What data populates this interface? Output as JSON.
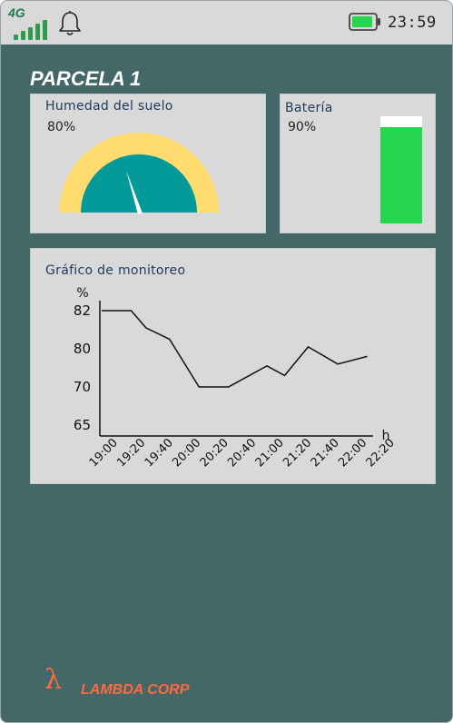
{
  "status_bar": {
    "network": "4G",
    "time": "23:59",
    "signal_bars": 5,
    "colors": {
      "signal": "#2e9c4a",
      "battery_fill": "#27d64f"
    }
  },
  "page": {
    "title": "PARCELA 1"
  },
  "humidity_card": {
    "title": "Humedad del suelo",
    "value": "80%",
    "level": 0.8,
    "colors": {
      "outer": "#ffdb70",
      "inner": "#049a99",
      "needle": "#ffffff"
    }
  },
  "battery_card": {
    "title": "Batería",
    "value": "90%",
    "level": 0.9,
    "colors": {
      "fill": "#27d64f",
      "empty": "#ffffff"
    }
  },
  "chart_card": {
    "title": "Gráfico de monitoreo"
  },
  "chart_data": {
    "type": "line",
    "title": "Gráfico de monitoreo",
    "xlabel": "h",
    "ylabel": "%",
    "y_tick_labels": [
      "82",
      "80",
      "70",
      "65"
    ],
    "x": [
      "19:00",
      "19:20",
      "19:40",
      "20:00",
      "20:20",
      "20:40",
      "21:00",
      "21:20",
      "21:40",
      "22:00",
      "22:20"
    ],
    "y_tick_positions": [
      0,
      1,
      2,
      3
    ],
    "points": [
      {
        "x": 0,
        "y": 0.0
      },
      {
        "x": 1,
        "y": 0.0
      },
      {
        "x": 1.5,
        "y": 0.45
      },
      {
        "x": 2.3,
        "y": 0.75
      },
      {
        "x": 3.3,
        "y": 2.0
      },
      {
        "x": 4.3,
        "y": 2.0
      },
      {
        "x": 5.6,
        "y": 1.45
      },
      {
        "x": 6.2,
        "y": 1.7
      },
      {
        "x": 7.0,
        "y": 0.95
      },
      {
        "x": 8.0,
        "y": 1.4
      },
      {
        "x": 9.0,
        "y": 1.2
      }
    ],
    "line_color": "#111111"
  },
  "footer": {
    "logo_glyph": "λ",
    "company": "LAMBDA CORP",
    "color": "#ff6a3d"
  }
}
